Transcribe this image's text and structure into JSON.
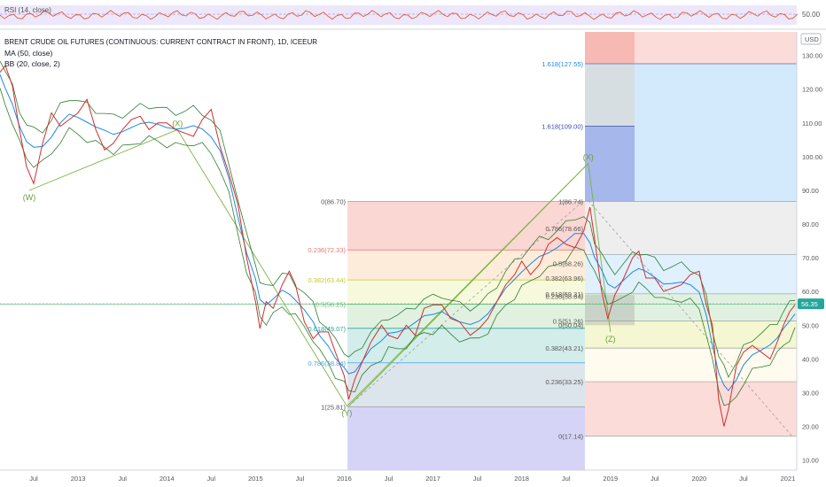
{
  "indicator_panel": {
    "label": "RSI (14, close)",
    "level": "50.00"
  },
  "legend": {
    "title": "BRENT CRUDE OIL FUTURES (CONTINUOUS: CURRENT CONTRACT IN FRONT), 1D, ICEEUR",
    "ma": "MA (50, close)",
    "bb": "BB (20, close, 2)"
  },
  "currency": "USD",
  "colors": {
    "price": "#d32f2f",
    "ma": "#26a69a",
    "bb": "#2e7d32",
    "wave": "#7cb342",
    "fib_red": "#f28b82",
    "fib_blue": "#90caf9",
    "fib_purple": "#b3b0f0",
    "last_price_bg": "#26a69a"
  },
  "chart_data": {
    "type": "line",
    "y_axis": {
      "ticks": [
        "10.00",
        "20.00",
        "30.00",
        "40.00",
        "50.00",
        "60.00",
        "70.00",
        "80.00",
        "90.00",
        "100.00",
        "110.00",
        "120.00",
        "130.00"
      ],
      "ylim": [
        7,
        137
      ]
    },
    "x_axis": {
      "ticks": [
        {
          "t": 2012.5,
          "label": "Jul"
        },
        {
          "t": 2013.0,
          "label": "2013"
        },
        {
          "t": 2013.5,
          "label": "Jul"
        },
        {
          "t": 2014.0,
          "label": "2014"
        },
        {
          "t": 2014.5,
          "label": "Jul"
        },
        {
          "t": 2015.0,
          "label": "2015"
        },
        {
          "t": 2015.5,
          "label": "Jul"
        },
        {
          "t": 2016.0,
          "label": "2016"
        },
        {
          "t": 2016.5,
          "label": "Jul"
        },
        {
          "t": 2017.0,
          "label": "2017"
        },
        {
          "t": 2017.5,
          "label": "Jul"
        },
        {
          "t": 2018.0,
          "label": "2018"
        },
        {
          "t": 2018.5,
          "label": "Jul"
        },
        {
          "t": 2019.0,
          "label": "2019"
        },
        {
          "t": 2019.5,
          "label": "Jul"
        },
        {
          "t": 2020.0,
          "label": "2020"
        },
        {
          "t": 2020.5,
          "label": "Jul"
        },
        {
          "t": 2021.0,
          "label": "2021"
        }
      ],
      "xlim": [
        2012.12,
        2021.1
      ]
    },
    "price_series": [
      [
        2012.12,
        125
      ],
      [
        2012.18,
        127
      ],
      [
        2012.26,
        121
      ],
      [
        2012.34,
        108
      ],
      [
        2012.42,
        97
      ],
      [
        2012.5,
        92
      ],
      [
        2012.6,
        104
      ],
      [
        2012.7,
        113
      ],
      [
        2012.8,
        109
      ],
      [
        2012.9,
        111
      ],
      [
        2013.0,
        113
      ],
      [
        2013.1,
        117
      ],
      [
        2013.2,
        108
      ],
      [
        2013.3,
        102
      ],
      [
        2013.4,
        104
      ],
      [
        2013.5,
        108
      ],
      [
        2013.6,
        111
      ],
      [
        2013.7,
        112
      ],
      [
        2013.8,
        108
      ],
      [
        2013.9,
        110
      ],
      [
        2014.0,
        110
      ],
      [
        2014.1,
        108
      ],
      [
        2014.2,
        107
      ],
      [
        2014.3,
        106
      ],
      [
        2014.4,
        111
      ],
      [
        2014.5,
        114
      ],
      [
        2014.6,
        103
      ],
      [
        2014.7,
        95
      ],
      [
        2014.8,
        86
      ],
      [
        2014.9,
        70
      ],
      [
        2015.0,
        57
      ],
      [
        2015.05,
        49
      ],
      [
        2015.12,
        57
      ],
      [
        2015.2,
        55
      ],
      [
        2015.3,
        62
      ],
      [
        2015.38,
        66
      ],
      [
        2015.45,
        62
      ],
      [
        2015.55,
        51
      ],
      [
        2015.65,
        46
      ],
      [
        2015.72,
        48
      ],
      [
        2015.82,
        48
      ],
      [
        2015.9,
        42
      ],
      [
        2016.0,
        35
      ],
      [
        2016.05,
        28
      ],
      [
        2016.12,
        34
      ],
      [
        2016.2,
        39
      ],
      [
        2016.3,
        45
      ],
      [
        2016.42,
        50
      ],
      [
        2016.5,
        47
      ],
      [
        2016.6,
        46
      ],
      [
        2016.7,
        50
      ],
      [
        2016.8,
        47
      ],
      [
        2016.9,
        55
      ],
      [
        2017.0,
        56
      ],
      [
        2017.1,
        56
      ],
      [
        2017.2,
        52
      ],
      [
        2017.3,
        51
      ],
      [
        2017.42,
        47
      ],
      [
        2017.52,
        49
      ],
      [
        2017.62,
        52
      ],
      [
        2017.72,
        57
      ],
      [
        2017.82,
        62
      ],
      [
        2017.92,
        65
      ],
      [
        2018.0,
        69
      ],
      [
        2018.1,
        65
      ],
      [
        2018.2,
        68
      ],
      [
        2018.3,
        74
      ],
      [
        2018.4,
        76
      ],
      [
        2018.5,
        74
      ],
      [
        2018.6,
        73
      ],
      [
        2018.7,
        78
      ],
      [
        2018.77,
        85
      ],
      [
        2018.82,
        76
      ],
      [
        2018.9,
        60
      ],
      [
        2018.97,
        52
      ],
      [
        2019.05,
        59
      ],
      [
        2019.15,
        64
      ],
      [
        2019.25,
        70
      ],
      [
        2019.32,
        72
      ],
      [
        2019.4,
        64
      ],
      [
        2019.5,
        64
      ],
      [
        2019.6,
        60
      ],
      [
        2019.7,
        61
      ],
      [
        2019.8,
        62
      ],
      [
        2019.9,
        65
      ],
      [
        2020.0,
        66
      ],
      [
        2020.08,
        56
      ],
      [
        2020.15,
        50
      ],
      [
        2020.22,
        28
      ],
      [
        2020.28,
        20
      ],
      [
        2020.33,
        25
      ],
      [
        2020.42,
        38
      ],
      [
        2020.5,
        42
      ],
      [
        2020.6,
        44
      ],
      [
        2020.7,
        42
      ],
      [
        2020.8,
        40
      ],
      [
        2020.88,
        45
      ],
      [
        2020.95,
        50
      ],
      [
        2021.02,
        54
      ],
      [
        2021.08,
        56
      ]
    ],
    "last_price": 56.35,
    "rsi_level": 50.0,
    "fib_retracement_1": {
      "levels": [
        {
          "label": "0(86.70)",
          "value": 86.7
        },
        {
          "label": "0.236(72.33)",
          "value": 72.33
        },
        {
          "label": "0.382(63.44)",
          "value": 63.44
        },
        {
          "label": "0.5(56.25)",
          "value": 56.25
        },
        {
          "label": "0.618(49.07)",
          "value": 49.07
        },
        {
          "label": "0.786(38.84)",
          "value": 38.84
        },
        {
          "label": "1(25.81)",
          "value": 25.81
        }
      ]
    },
    "fib_retracement_2": {
      "levels": [
        {
          "label": "1(86.74)",
          "value": 86.74
        },
        {
          "label": "0.786(78.66)",
          "value": 78.66
        },
        {
          "label": "0.5(68.26)",
          "value": 68.26
        },
        {
          "label": "0.382(63.96)",
          "value": 63.96
        },
        {
          "label": "0.618(59.31)",
          "value": 59.31
        },
        {
          "label": "0.236(58.64)",
          "value": 58.64
        },
        {
          "label": "0.5(51.26)",
          "value": 51.26
        },
        {
          "label": "0(50.04)",
          "value": 50.04
        },
        {
          "label": "0.382(43.21)",
          "value": 43.21
        },
        {
          "label": "0.236(33.25)",
          "value": 33.25
        },
        {
          "label": "0(17.14)",
          "value": 17.14
        }
      ]
    },
    "fib_extension": {
      "levels": [
        {
          "label": "1.618(127.55)",
          "value": 127.55
        },
        {
          "label": "1.618(109.00)",
          "value": 109.0
        }
      ]
    },
    "waves": [
      {
        "label": "(W)",
        "t": 2012.45,
        "value": 90
      },
      {
        "label": "(X)",
        "t": 2014.12,
        "value": 108
      },
      {
        "label": "(Y)",
        "t": 2016.03,
        "value": 26
      },
      {
        "label": "(X)",
        "t": 2018.75,
        "value": 98
      },
      {
        "label": "(Z)",
        "t": 2019.0,
        "value": 48
      }
    ]
  }
}
